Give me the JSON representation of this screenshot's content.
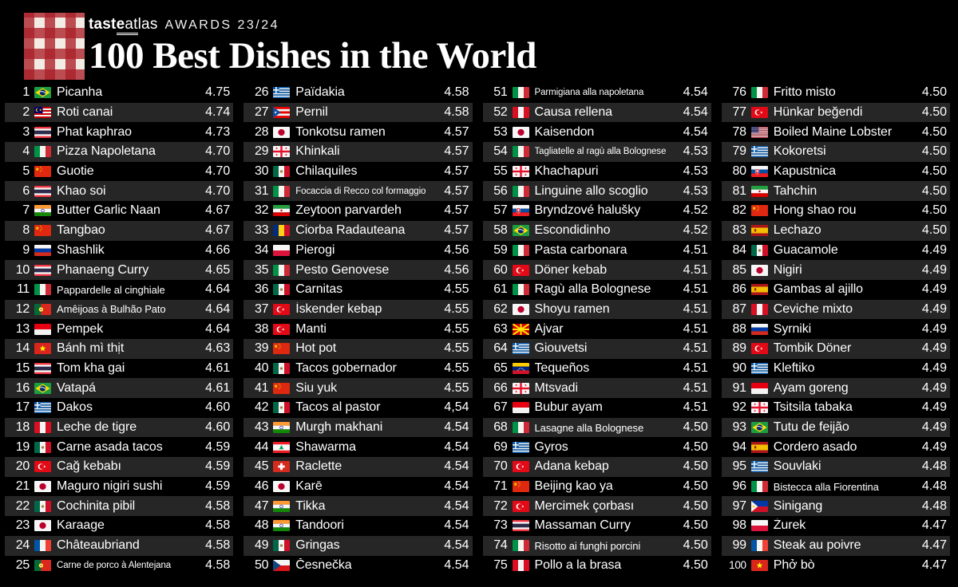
{
  "header": {
    "brand": "tasteatlas",
    "awards_label": "AWARDS 23/24",
    "title": "100 Best Dishes in the World"
  },
  "colors": {
    "background": "#000000",
    "row_stripe": "#262626",
    "text": "#ffffff",
    "brand_red": "#ab2029"
  },
  "items": [
    {
      "rank": 1,
      "flag": "brazil",
      "country": "Brazil",
      "name": "Picanha",
      "rating": "4.75"
    },
    {
      "rank": 2,
      "flag": "malaysia",
      "country": "Malaysia",
      "name": "Roti canai",
      "rating": "4.74"
    },
    {
      "rank": 3,
      "flag": "thailand",
      "country": "Thailand",
      "name": "Phat kaphrao",
      "rating": "4.73"
    },
    {
      "rank": 4,
      "flag": "italy",
      "country": "Italy",
      "name": "Pizza Napoletana",
      "rating": "4.70"
    },
    {
      "rank": 5,
      "flag": "china",
      "country": "China",
      "name": "Guotie",
      "rating": "4.70"
    },
    {
      "rank": 6,
      "flag": "thailand",
      "country": "Thailand",
      "name": "Khao soi",
      "rating": "4.70"
    },
    {
      "rank": 7,
      "flag": "india",
      "country": "India",
      "name": "Butter Garlic Naan",
      "rating": "4.67"
    },
    {
      "rank": 8,
      "flag": "china",
      "country": "China",
      "name": "Tangbao",
      "rating": "4.67"
    },
    {
      "rank": 9,
      "flag": "russia",
      "country": "Russia",
      "name": "Shashlik",
      "rating": "4.66"
    },
    {
      "rank": 10,
      "flag": "thailand",
      "country": "Thailand",
      "name": "Phanaeng Curry",
      "rating": "4.65"
    },
    {
      "rank": 11,
      "flag": "italy",
      "country": "Italy",
      "name": "Pappardelle al cinghiale",
      "rating": "4.64"
    },
    {
      "rank": 12,
      "flag": "portugal",
      "country": "Portugal",
      "name": "Amêijoas à Bulhão Pato",
      "rating": "4.64"
    },
    {
      "rank": 13,
      "flag": "indonesia",
      "country": "Indonesia",
      "name": "Pempek",
      "rating": "4.64"
    },
    {
      "rank": 14,
      "flag": "vietnam",
      "country": "Vietnam",
      "name": "Bánh mì thịt",
      "rating": "4.63"
    },
    {
      "rank": 15,
      "flag": "thailand",
      "country": "Thailand",
      "name": "Tom kha gai",
      "rating": "4.61"
    },
    {
      "rank": 16,
      "flag": "brazil",
      "country": "Brazil",
      "name": "Vatapá",
      "rating": "4.61"
    },
    {
      "rank": 17,
      "flag": "greece",
      "country": "Greece",
      "name": "Dakos",
      "rating": "4.60"
    },
    {
      "rank": 18,
      "flag": "peru",
      "country": "Peru",
      "name": "Leche de tigre",
      "rating": "4.60"
    },
    {
      "rank": 19,
      "flag": "mexico",
      "country": "Mexico",
      "name": "Carne asada tacos",
      "rating": "4.59"
    },
    {
      "rank": 20,
      "flag": "turkey",
      "country": "Turkey",
      "name": "Cağ kebabı",
      "rating": "4.59"
    },
    {
      "rank": 21,
      "flag": "japan",
      "country": "Japan",
      "name": "Maguro nigiri sushi",
      "rating": "4.59"
    },
    {
      "rank": 22,
      "flag": "mexico",
      "country": "Mexico",
      "name": "Cochinita pibil",
      "rating": "4.58"
    },
    {
      "rank": 23,
      "flag": "japan",
      "country": "Japan",
      "name": "Karaage",
      "rating": "4.58"
    },
    {
      "rank": 24,
      "flag": "france",
      "country": "France",
      "name": "Châteaubriand",
      "rating": "4.58"
    },
    {
      "rank": 25,
      "flag": "portugal",
      "country": "Portugal",
      "name": "Carne de porco à Alentejana",
      "rating": "4.58"
    },
    {
      "rank": 26,
      "flag": "greece",
      "country": "Greece",
      "name": "Païdakia",
      "rating": "4.58"
    },
    {
      "rank": 27,
      "flag": "puerto-rico",
      "country": "Puerto Rico",
      "name": "Pernil",
      "rating": "4.58"
    },
    {
      "rank": 28,
      "flag": "japan",
      "country": "Japan",
      "name": "Tonkotsu ramen",
      "rating": "4.57"
    },
    {
      "rank": 29,
      "flag": "georgia",
      "country": "Georgia",
      "name": "Khinkali",
      "rating": "4.57"
    },
    {
      "rank": 30,
      "flag": "mexico",
      "country": "Mexico",
      "name": "Chilaquiles",
      "rating": "4.57"
    },
    {
      "rank": 31,
      "flag": "italy",
      "country": "Italy",
      "name": "Focaccia di Recco col formaggio",
      "rating": "4.57"
    },
    {
      "rank": 32,
      "flag": "iran",
      "country": "Iran",
      "name": "Zeytoon parvardeh",
      "rating": "4.57"
    },
    {
      "rank": 33,
      "flag": "romania",
      "country": "Romania",
      "name": "Ciorba Radauteana",
      "rating": "4.57"
    },
    {
      "rank": 34,
      "flag": "poland",
      "country": "Poland",
      "name": "Pierogi",
      "rating": "4.56"
    },
    {
      "rank": 35,
      "flag": "italy",
      "country": "Italy",
      "name": "Pesto Genovese",
      "rating": "4.56"
    },
    {
      "rank": 36,
      "flag": "mexico",
      "country": "Mexico",
      "name": "Carnitas",
      "rating": "4.55"
    },
    {
      "rank": 37,
      "flag": "turkey",
      "country": "Turkey",
      "name": "İskender kebap",
      "rating": "4.55"
    },
    {
      "rank": 38,
      "flag": "turkey",
      "country": "Turkey",
      "name": "Manti",
      "rating": "4.55"
    },
    {
      "rank": 39,
      "flag": "china",
      "country": "China",
      "name": "Hot pot",
      "rating": "4.55"
    },
    {
      "rank": 40,
      "flag": "mexico",
      "country": "Mexico",
      "name": "Tacos gobernador",
      "rating": "4.55"
    },
    {
      "rank": 41,
      "flag": "china",
      "country": "China",
      "name": "Siu yuk",
      "rating": "4.55"
    },
    {
      "rank": 42,
      "flag": "mexico",
      "country": "Mexico",
      "name": "Tacos al pastor",
      "rating": "4,54"
    },
    {
      "rank": 43,
      "flag": "india",
      "country": "India",
      "name": "Murgh makhani",
      "rating": "4.54"
    },
    {
      "rank": 44,
      "flag": "lebanon",
      "country": "Lebanon",
      "name": "Shawarma",
      "rating": "4.54"
    },
    {
      "rank": 45,
      "flag": "switzerland",
      "country": "Switzerland",
      "name": "Raclette",
      "rating": "4.54"
    },
    {
      "rank": 46,
      "flag": "japan",
      "country": "Japan",
      "name": "Karē",
      "rating": "4.54"
    },
    {
      "rank": 47,
      "flag": "india",
      "country": "India",
      "name": "Tikka",
      "rating": "4.54"
    },
    {
      "rank": 48,
      "flag": "india",
      "country": "India",
      "name": "Tandoori",
      "rating": "4.54"
    },
    {
      "rank": 49,
      "flag": "mexico",
      "country": "Mexico",
      "name": "Gringas",
      "rating": "4.54"
    },
    {
      "rank": 50,
      "flag": "czechia",
      "country": "Czech Republic",
      "name": "Česnečka",
      "rating": "4.54"
    },
    {
      "rank": 51,
      "flag": "italy",
      "country": "Italy",
      "name": "Parmigiana alla napoletana",
      "rating": "4.54"
    },
    {
      "rank": 52,
      "flag": "peru",
      "country": "Peru",
      "name": "Causa rellena",
      "rating": "4.54"
    },
    {
      "rank": 53,
      "flag": "japan",
      "country": "Japan",
      "name": "Kaisendon",
      "rating": "4.54"
    },
    {
      "rank": 54,
      "flag": "italy",
      "country": "Italy",
      "name": "Tagliatelle al ragù alla Bolognese",
      "rating": "4.53"
    },
    {
      "rank": 55,
      "flag": "georgia",
      "country": "Georgia",
      "name": "Khachapuri",
      "rating": "4.53"
    },
    {
      "rank": 56,
      "flag": "italy",
      "country": "Italy",
      "name": "Linguine allo scoglio",
      "rating": "4.53"
    },
    {
      "rank": 57,
      "flag": "slovakia",
      "country": "Slovakia",
      "name": "Bryndzové halušky",
      "rating": "4.52"
    },
    {
      "rank": 58,
      "flag": "brazil",
      "country": "Brazil",
      "name": "Escondidinho",
      "rating": "4.52"
    },
    {
      "rank": 59,
      "flag": "italy",
      "country": "Italy",
      "name": "Pasta carbonara",
      "rating": "4.51"
    },
    {
      "rank": 60,
      "flag": "turkey",
      "country": "Turkey",
      "name": "Döner kebab",
      "rating": "4.51"
    },
    {
      "rank": 61,
      "flag": "italy",
      "country": "Italy",
      "name": "Ragù alla Bolognese",
      "rating": "4.51"
    },
    {
      "rank": 62,
      "flag": "japan",
      "country": "Japan",
      "name": "Shoyu ramen",
      "rating": "4.51"
    },
    {
      "rank": 63,
      "flag": "north-macedonia",
      "country": "North Macedonia",
      "name": "Ajvar",
      "rating": "4.51"
    },
    {
      "rank": 64,
      "flag": "greece",
      "country": "Greece",
      "name": "Giouvetsi",
      "rating": "4.51"
    },
    {
      "rank": 65,
      "flag": "venezuela",
      "country": "Venezuela",
      "name": "Tequeños",
      "rating": "4.51"
    },
    {
      "rank": 66,
      "flag": "georgia",
      "country": "Georgia",
      "name": "Mtsvadi",
      "rating": "4.51"
    },
    {
      "rank": 67,
      "flag": "indonesia",
      "country": "Indonesia",
      "name": "Bubur ayam",
      "rating": "4.51"
    },
    {
      "rank": 68,
      "flag": "italy",
      "country": "Italy",
      "name": "Lasagne alla Bolognese",
      "rating": "4.50"
    },
    {
      "rank": 69,
      "flag": "greece",
      "country": "Greece",
      "name": "Gyros",
      "rating": "4.50"
    },
    {
      "rank": 70,
      "flag": "turkey",
      "country": "Turkey",
      "name": "Adana kebap",
      "rating": "4.50"
    },
    {
      "rank": 71,
      "flag": "china",
      "country": "China",
      "name": "Beijing kao ya",
      "rating": "4.50"
    },
    {
      "rank": 72,
      "flag": "turkey",
      "country": "Turkey",
      "name": "Mercimek çorbası",
      "rating": "4.50"
    },
    {
      "rank": 73,
      "flag": "thailand",
      "country": "Thailand",
      "name": "Massaman Curry",
      "rating": "4.50"
    },
    {
      "rank": 74,
      "flag": "italy",
      "country": "Italy",
      "name": "Risotto ai funghi porcini",
      "rating": "4.50"
    },
    {
      "rank": 75,
      "flag": "peru",
      "country": "Peru",
      "name": "Pollo a la brasa",
      "rating": "4.50"
    },
    {
      "rank": 76,
      "flag": "italy",
      "country": "Italy",
      "name": "Fritto misto",
      "rating": "4.50"
    },
    {
      "rank": 77,
      "flag": "turkey",
      "country": "Turkey",
      "name": "Hünkar beğendi",
      "rating": "4.50"
    },
    {
      "rank": 78,
      "flag": "usa",
      "country": "United States",
      "name": "Boiled Maine Lobster",
      "rating": "4.50"
    },
    {
      "rank": 79,
      "flag": "greece",
      "country": "Greece",
      "name": "Kokoretsi",
      "rating": "4.50"
    },
    {
      "rank": 80,
      "flag": "slovakia",
      "country": "Slovakia",
      "name": "Kapustnica",
      "rating": "4.50"
    },
    {
      "rank": 81,
      "flag": "iran",
      "country": "Iran",
      "name": "Tahchin",
      "rating": "4.50"
    },
    {
      "rank": 82,
      "flag": "china",
      "country": "China",
      "name": "Hong shao rou",
      "rating": "4.50"
    },
    {
      "rank": 83,
      "flag": "spain",
      "country": "Spain",
      "name": "Lechazo",
      "rating": "4.50"
    },
    {
      "rank": 84,
      "flag": "mexico",
      "country": "Mexico",
      "name": "Guacamole",
      "rating": "4.49"
    },
    {
      "rank": 85,
      "flag": "japan",
      "country": "Japan",
      "name": "Nigiri",
      "rating": "4.49"
    },
    {
      "rank": 86,
      "flag": "spain",
      "country": "Spain",
      "name": "Gambas al ajillo",
      "rating": "4.49"
    },
    {
      "rank": 87,
      "flag": "peru",
      "country": "Peru",
      "name": "Ceviche mixto",
      "rating": "4.49"
    },
    {
      "rank": 88,
      "flag": "russia",
      "country": "Russia",
      "name": "Syrniki",
      "rating": "4.49"
    },
    {
      "rank": 89,
      "flag": "turkey",
      "country": "Turkey",
      "name": "Tombik Döner",
      "rating": "4.49"
    },
    {
      "rank": 90,
      "flag": "greece",
      "country": "Greece",
      "name": "Kleftiko",
      "rating": "4.49"
    },
    {
      "rank": 91,
      "flag": "indonesia",
      "country": "Indonesia",
      "name": "Ayam goreng",
      "rating": "4.49"
    },
    {
      "rank": 92,
      "flag": "georgia",
      "country": "Georgia",
      "name": "Tsitsila tabaka",
      "rating": "4.49"
    },
    {
      "rank": 93,
      "flag": "brazil",
      "country": "Brazil",
      "name": "Tutu de feijão",
      "rating": "4.49"
    },
    {
      "rank": 94,
      "flag": "spain",
      "country": "Spain",
      "name": "Cordero asado",
      "rating": "4.49"
    },
    {
      "rank": 95,
      "flag": "greece",
      "country": "Greece",
      "name": "Souvlaki",
      "rating": "4.48"
    },
    {
      "rank": 96,
      "flag": "italy",
      "country": "Italy",
      "name": "Bistecca alla Fiorentina",
      "rating": "4.48"
    },
    {
      "rank": 97,
      "flag": "philippines",
      "country": "Philippines",
      "name": "Sinigang",
      "rating": "4.48"
    },
    {
      "rank": 98,
      "flag": "poland",
      "country": "Poland",
      "name": "Żurek",
      "rating": "4.47"
    },
    {
      "rank": 99,
      "flag": "france",
      "country": "France",
      "name": "Steak au poivre",
      "rating": "4.47"
    },
    {
      "rank": 100,
      "flag": "vietnam",
      "country": "Vietnam",
      "name": "Phở bò",
      "rating": "4.47"
    }
  ]
}
